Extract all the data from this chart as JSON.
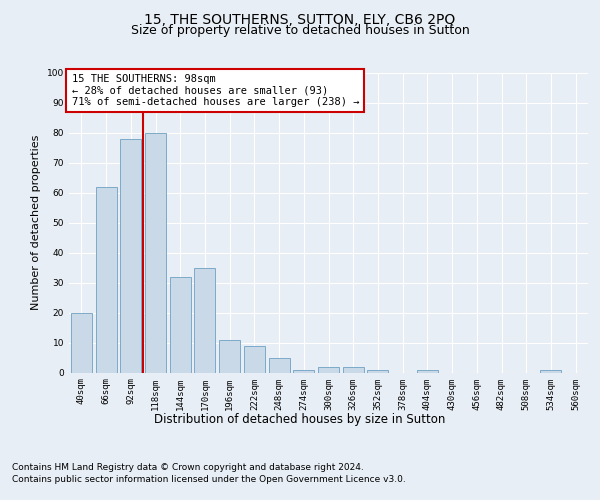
{
  "title1": "15, THE SOUTHERNS, SUTTON, ELY, CB6 2PQ",
  "title2": "Size of property relative to detached houses in Sutton",
  "xlabel": "Distribution of detached houses by size in Sutton",
  "ylabel": "Number of detached properties",
  "categories": [
    "40sqm",
    "66sqm",
    "92sqm",
    "118sqm",
    "144sqm",
    "170sqm",
    "196sqm",
    "222sqm",
    "248sqm",
    "274sqm",
    "300sqm",
    "326sqm",
    "352sqm",
    "378sqm",
    "404sqm",
    "430sqm",
    "456sqm",
    "482sqm",
    "508sqm",
    "534sqm",
    "560sqm"
  ],
  "values": [
    20,
    62,
    78,
    80,
    32,
    35,
    11,
    9,
    5,
    1,
    2,
    2,
    1,
    0,
    1,
    0,
    0,
    0,
    0,
    1,
    0
  ],
  "bar_color": "#c9d9e8",
  "bar_edge_color": "#7baac8",
  "red_line_index": 2,
  "annotation_title": "15 THE SOUTHERNS: 98sqm",
  "annotation_line1": "← 28% of detached houses are smaller (93)",
  "annotation_line2": "71% of semi-detached houses are larger (238) →",
  "annotation_box_color": "#ffffff",
  "annotation_box_edge_color": "#cc0000",
  "ylim": [
    0,
    100
  ],
  "yticks": [
    0,
    10,
    20,
    30,
    40,
    50,
    60,
    70,
    80,
    90,
    100
  ],
  "bg_color": "#e8eef5",
  "plot_bg_color": "#e8eef5",
  "footer1": "Contains HM Land Registry data © Crown copyright and database right 2024.",
  "footer2": "Contains public sector information licensed under the Open Government Licence v3.0.",
  "grid_color": "#ffffff",
  "title_fontsize": 10,
  "subtitle_fontsize": 9,
  "ylabel_fontsize": 8,
  "xlabel_fontsize": 8.5,
  "tick_fontsize": 6.5,
  "annotation_fontsize": 7.5,
  "footer_fontsize": 6.5
}
